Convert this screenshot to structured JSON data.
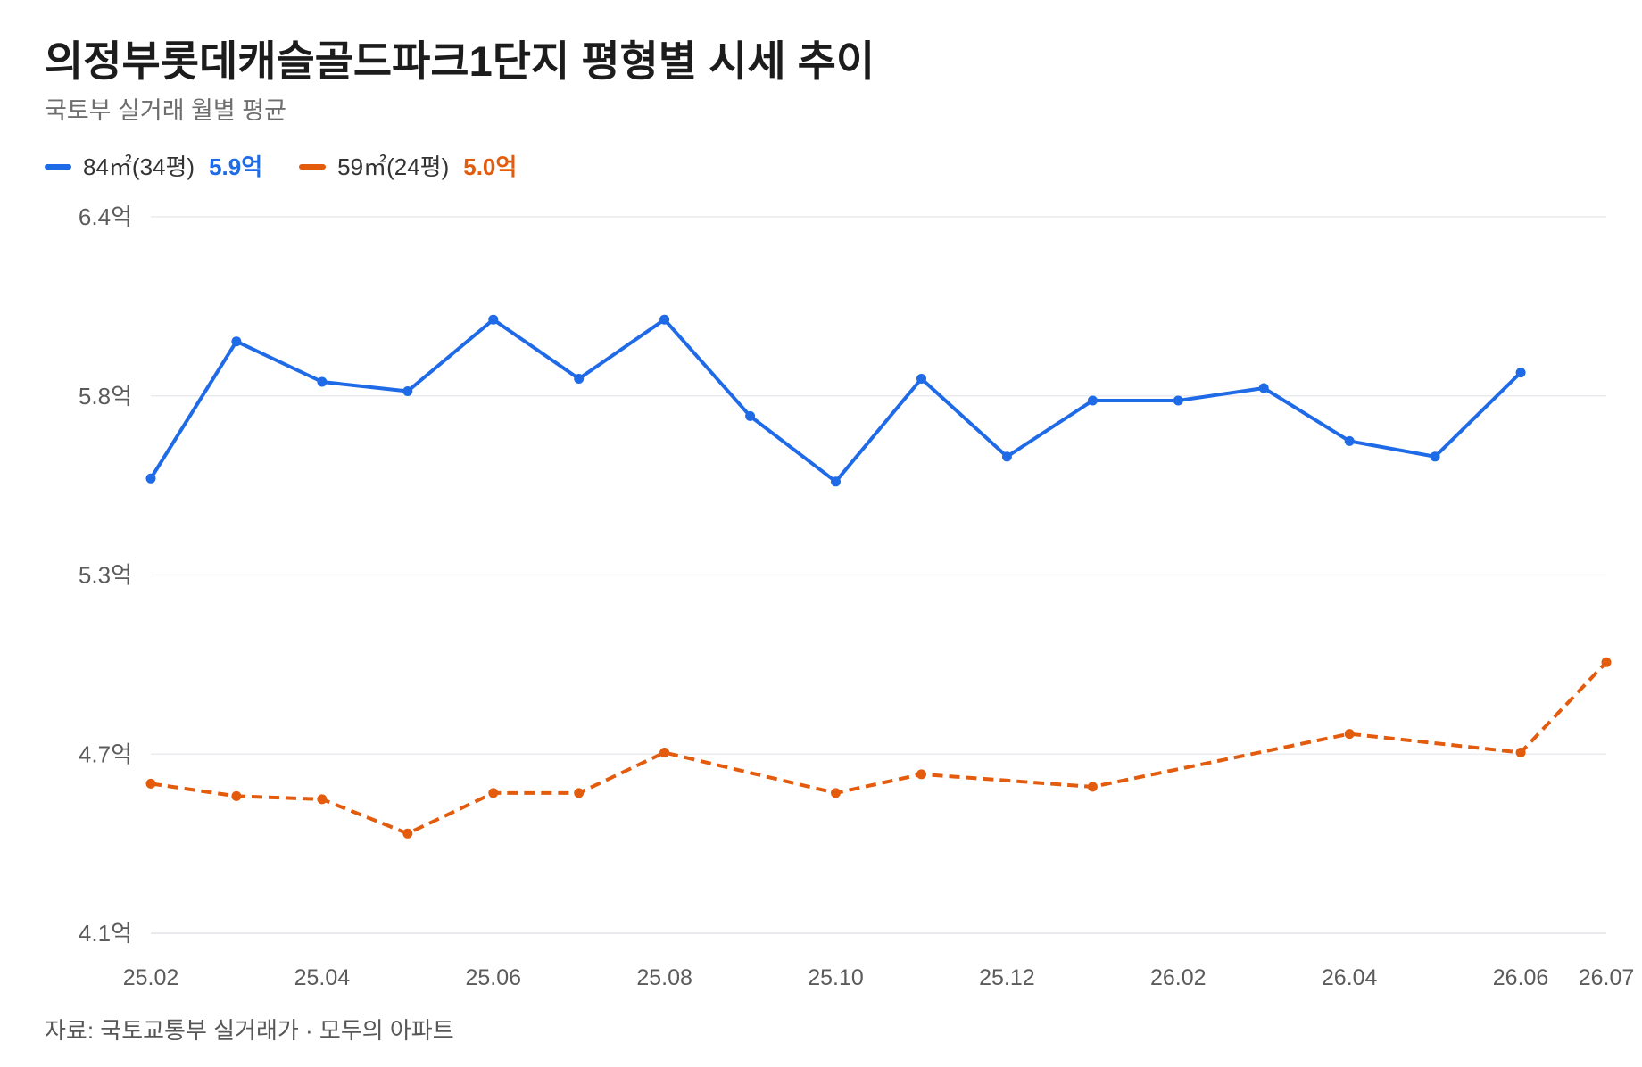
{
  "chart_data": {
    "type": "line",
    "title": "의정부롯데캐슬골드파크1단지 평형별 시세 추이",
    "subtitle": "국토부 실거래 월별 평균",
    "x": [
      "25.02",
      "25.03",
      "25.04",
      "25.05",
      "25.06",
      "25.07",
      "25.08",
      "25.09",
      "25.10",
      "25.11",
      "25.12",
      "26.01",
      "26.02",
      "26.03",
      "26.04",
      "26.05",
      "26.06",
      "26.07"
    ],
    "x_ticks": [
      "25.02",
      "25.04",
      "25.06",
      "25.08",
      "25.10",
      "25.12",
      "26.02",
      "26.04",
      "26.06",
      "26.07"
    ],
    "ylim": [
      4.1,
      6.4
    ],
    "y_ticks": [
      "6.4억",
      "5.8억",
      "5.3억",
      "4.7억",
      "4.1억"
    ],
    "grid": true,
    "legend_position": "top-left",
    "series": [
      {
        "name": "84㎡(34평)",
        "latest": "5.9억",
        "color": "#1f6ae6",
        "dashed": false,
        "values": [
          5.56,
          6.0,
          5.87,
          5.84,
          6.07,
          5.88,
          6.07,
          5.76,
          5.55,
          5.88,
          5.63,
          5.81,
          5.81,
          5.85,
          5.68,
          5.63,
          5.9,
          null
        ]
      },
      {
        "name": "59㎡(24평)",
        "latest": "5.0억",
        "color": "#e35b0d",
        "dashed": true,
        "values": [
          4.58,
          4.54,
          4.53,
          4.42,
          4.55,
          4.55,
          4.68,
          null,
          4.55,
          4.61,
          null,
          4.57,
          null,
          null,
          4.74,
          null,
          4.68,
          4.97
        ]
      }
    ],
    "source": "자료: 국토교통부 실거래가 · 모두의 아파트"
  }
}
